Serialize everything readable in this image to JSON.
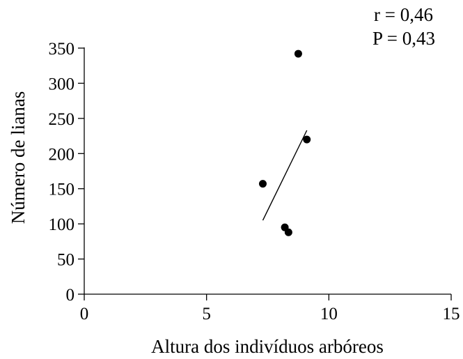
{
  "chart_data": {
    "type": "scatter",
    "xlabel": "Altura dos indivíduos arbóreos",
    "ylabel": "Número de lianas",
    "xlim": [
      0,
      15
    ],
    "ylim": [
      0,
      350
    ],
    "x_ticks": [
      0,
      5,
      10,
      15
    ],
    "x_tick_labels": [
      "0",
      "5",
      "10",
      "15"
    ],
    "y_ticks": [
      0,
      50,
      100,
      150,
      200,
      250,
      300,
      350
    ],
    "y_tick_labels": [
      "0",
      "50",
      "100",
      "150",
      "200",
      "250",
      "300",
      "350"
    ],
    "points": [
      {
        "x": 8.75,
        "y": 342
      },
      {
        "x": 9.1,
        "y": 220
      },
      {
        "x": 7.3,
        "y": 157
      },
      {
        "x": 8.2,
        "y": 95
      },
      {
        "x": 8.35,
        "y": 88
      }
    ],
    "regression_line": {
      "x": [
        7.3,
        9.1
      ],
      "y": [
        105,
        233
      ]
    },
    "grid": false,
    "stats": {
      "r": "r = 0,46",
      "p": "P = 0,43"
    }
  }
}
